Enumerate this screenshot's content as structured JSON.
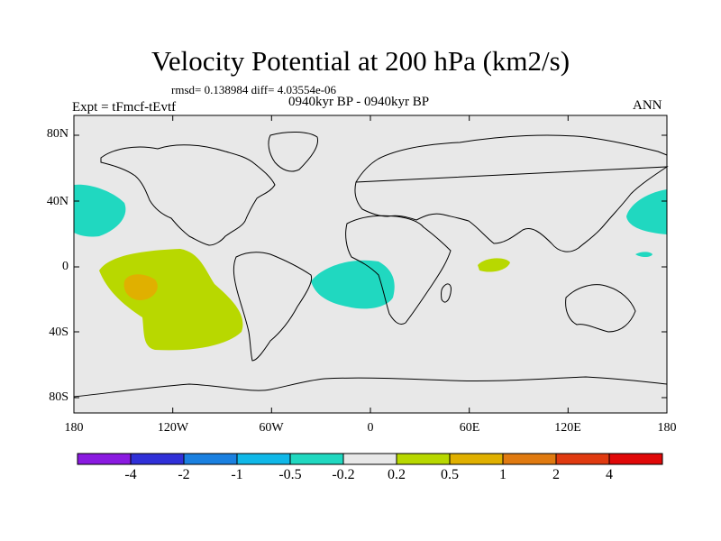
{
  "title": "Velocity Potential at 200 hPa (km2/s)",
  "stats": "rmsd= 0.138984 diff= 4.03554e-06",
  "expt": "Expt = tFmcf-tEvtf",
  "period": "0940kyr BP - 0940kyr BP",
  "season": "ANN",
  "colors": {
    "ocean_bg": "#e8e8e8",
    "neg_light": "#20d8c0",
    "pos_light": "#b8d800",
    "pos_mid": "#e0b000"
  },
  "map": {
    "lat_ticks": [
      "80N",
      "40N",
      "0",
      "40S",
      "80S"
    ],
    "lon_ticks": [
      "180",
      "120W",
      "60W",
      "0",
      "60E",
      "120E",
      "180"
    ]
  },
  "colorbar": {
    "levels": [
      "-4",
      "-2",
      "-1",
      "-0.5",
      "-0.2",
      "0.2",
      "0.5",
      "1",
      "2",
      "4"
    ],
    "colors": [
      "#8a1ae0",
      "#3030d8",
      "#1a80e0",
      "#10b8e8",
      "#20d8c0",
      "#e8e8e8",
      "#b8d800",
      "#e0b000",
      "#e07a10",
      "#e03a10",
      "#e00808"
    ]
  }
}
